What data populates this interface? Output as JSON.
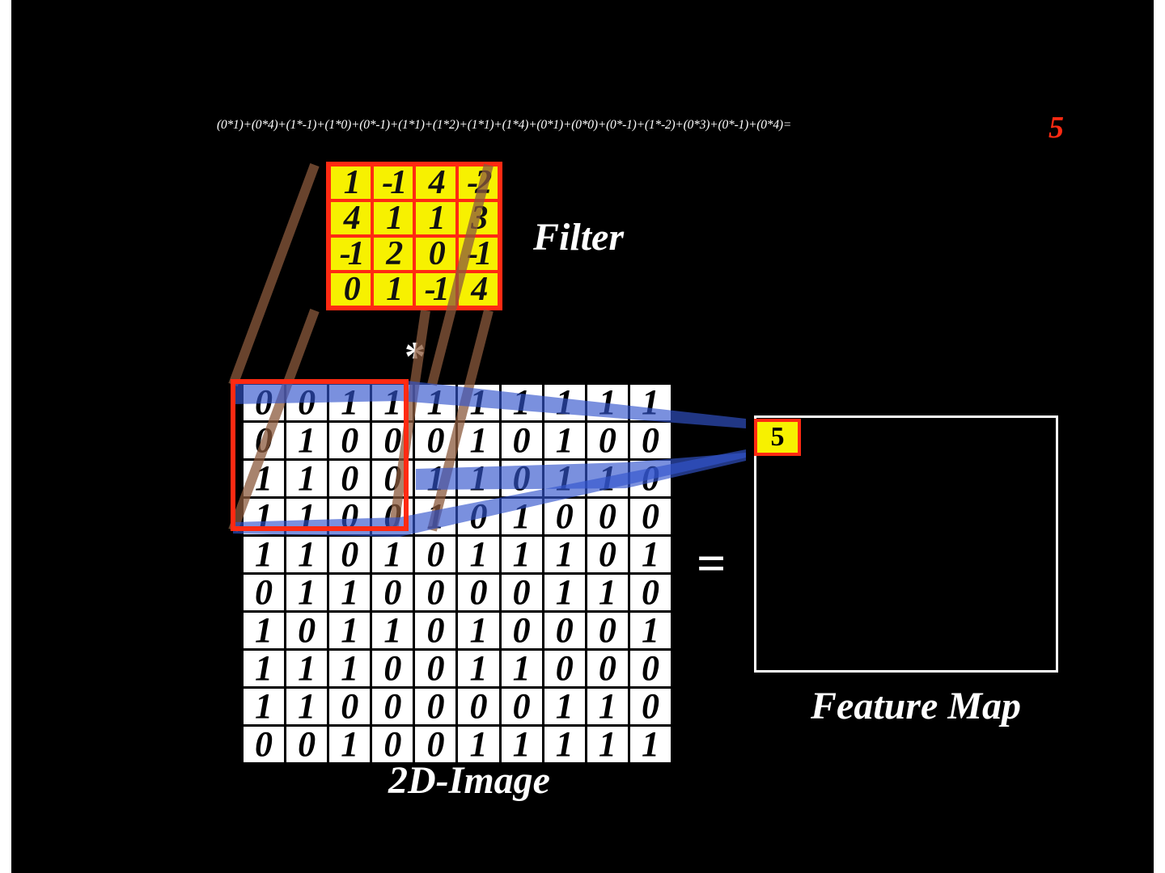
{
  "equation": "(0*1)+(0*4)+(1*-1)+(1*0)+(0*-1)+(1*1)+(1*2)+(1*1)+(1*4)+(0*1)+(0*0)+(0*-1)+(1*-2)+(0*3)+(0*-1)+(0*4)=",
  "result": "5",
  "labels": {
    "filter": "Filter",
    "image": "2D-Image",
    "feature_map": "Feature Map",
    "operator": "*",
    "equals": "="
  },
  "filter": [
    [
      "1",
      "-1",
      "4",
      "-2"
    ],
    [
      "4",
      "1",
      "1",
      "3"
    ],
    [
      "-1",
      "2",
      "0",
      "-1"
    ],
    [
      "0",
      "1",
      "-1",
      "4"
    ]
  ],
  "image": [
    [
      "0",
      "0",
      "1",
      "1",
      "1",
      "1",
      "1",
      "1",
      "1",
      "1"
    ],
    [
      "0",
      "1",
      "0",
      "0",
      "0",
      "1",
      "0",
      "1",
      "0",
      "0"
    ],
    [
      "1",
      "1",
      "0",
      "0",
      "1",
      "1",
      "0",
      "1",
      "1",
      "0"
    ],
    [
      "1",
      "1",
      "0",
      "0",
      "1",
      "0",
      "1",
      "0",
      "0",
      "0"
    ],
    [
      "1",
      "1",
      "0",
      "1",
      "0",
      "1",
      "1",
      "1",
      "0",
      "1"
    ],
    [
      "0",
      "1",
      "1",
      "0",
      "0",
      "0",
      "0",
      "1",
      "1",
      "0"
    ],
    [
      "1",
      "0",
      "1",
      "1",
      "0",
      "1",
      "0",
      "0",
      "0",
      "1"
    ],
    [
      "1",
      "1",
      "1",
      "0",
      "0",
      "1",
      "1",
      "0",
      "0",
      "0"
    ],
    [
      "1",
      "1",
      "0",
      "0",
      "0",
      "0",
      "0",
      "1",
      "1",
      "0"
    ],
    [
      "0",
      "0",
      "1",
      "0",
      "0",
      "1",
      "1",
      "1",
      "1",
      "1"
    ]
  ],
  "feature_map_value": "5",
  "colors": {
    "background": "#000000",
    "highlight": "#ff2a12",
    "filter_fill": "#f7f100",
    "projection": "#8b5a3c",
    "connector": "#3355cc"
  }
}
